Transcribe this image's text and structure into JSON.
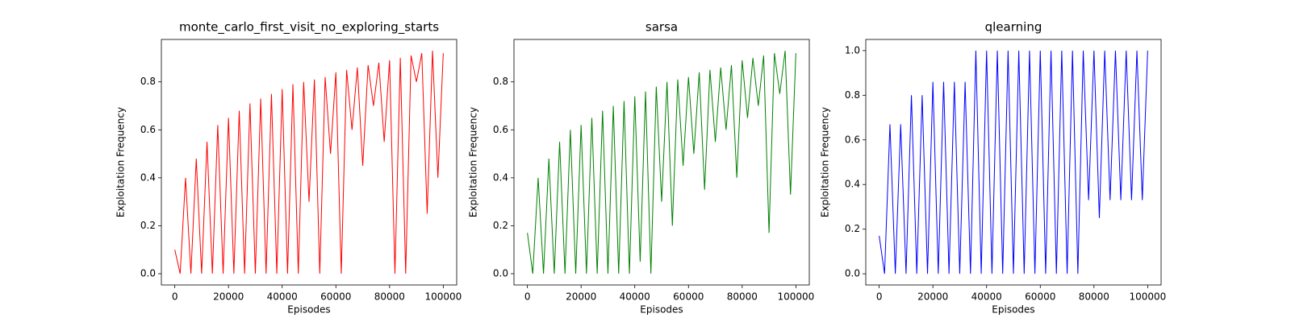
{
  "chart_data": [
    {
      "type": "line",
      "title": "monte_carlo_first_visit_no_exploring_starts",
      "x_label": "Episodes",
      "y_label": "Exploitation Frequency",
      "color": "#ff0000",
      "x": [
        0,
        2000,
        4000,
        6000,
        8000,
        10000,
        12000,
        14000,
        16000,
        18000,
        20000,
        22000,
        24000,
        26000,
        28000,
        30000,
        32000,
        34000,
        36000,
        38000,
        40000,
        42000,
        44000,
        46000,
        48000,
        50000,
        52000,
        54000,
        56000,
        58000,
        60000,
        62000,
        64000,
        66000,
        68000,
        70000,
        72000,
        74000,
        76000,
        78000,
        80000,
        82000,
        84000,
        86000,
        88000,
        90000,
        92000,
        94000,
        96000,
        98000,
        100000
      ],
      "values": [
        0.1,
        0,
        0.4,
        0,
        0.48,
        0,
        0.55,
        0,
        0.62,
        0,
        0.65,
        0,
        0.68,
        0,
        0.71,
        0,
        0.73,
        0,
        0.75,
        0,
        0.77,
        0,
        0.79,
        0,
        0.8,
        0.3,
        0.81,
        0,
        0.82,
        0.5,
        0.84,
        0,
        0.85,
        0.6,
        0.86,
        0.45,
        0.87,
        0.7,
        0.88,
        0.55,
        0.89,
        0,
        0.9,
        0,
        0.91,
        0.8,
        0.92,
        0.25,
        0.93,
        0.4,
        0.92
      ],
      "xlim": [
        -5000,
        105000
      ],
      "xticks": [
        0,
        20000,
        40000,
        60000,
        80000,
        100000
      ],
      "ylim": [
        -0.047,
        0.977
      ],
      "yticks": [
        {
          "value": 0,
          "label": "0.0"
        },
        0.2,
        0.4,
        0.6,
        0.8
      ]
    },
    {
      "type": "line",
      "title": "sarsa",
      "x_label": "Episodes",
      "y_label": "Exploitation Frequency",
      "color": "#008000",
      "x": [
        0,
        2000,
        4000,
        6000,
        8000,
        10000,
        12000,
        14000,
        16000,
        18000,
        20000,
        22000,
        24000,
        26000,
        28000,
        30000,
        32000,
        34000,
        36000,
        38000,
        40000,
        42000,
        44000,
        46000,
        48000,
        50000,
        52000,
        54000,
        56000,
        58000,
        60000,
        62000,
        64000,
        66000,
        68000,
        70000,
        72000,
        74000,
        76000,
        78000,
        80000,
        82000,
        84000,
        86000,
        88000,
        90000,
        92000,
        94000,
        96000,
        98000,
        100000
      ],
      "values": [
        0.17,
        0,
        0.4,
        0,
        0.48,
        0,
        0.55,
        0,
        0.6,
        0,
        0.62,
        0,
        0.65,
        0,
        0.68,
        0,
        0.7,
        0,
        0.72,
        0,
        0.74,
        0.05,
        0.76,
        0,
        0.78,
        0.3,
        0.8,
        0.2,
        0.81,
        0.45,
        0.82,
        0.5,
        0.84,
        0.35,
        0.85,
        0.55,
        0.86,
        0.6,
        0.87,
        0.4,
        0.89,
        0.65,
        0.9,
        0.7,
        0.91,
        0.17,
        0.92,
        0.75,
        0.93,
        0.33,
        0.92
      ],
      "xlim": [
        -5000,
        105000
      ],
      "xticks": [
        0,
        20000,
        40000,
        60000,
        80000,
        100000
      ],
      "ylim": [
        -0.047,
        0.977
      ],
      "yticks": [
        {
          "value": 0,
          "label": "0.0"
        },
        0.2,
        0.4,
        0.6,
        0.8
      ]
    },
    {
      "type": "line",
      "title": "qlearning",
      "x_label": "Episodes",
      "y_label": "Exploitation Frequency",
      "color": "#0000ff",
      "x": [
        0,
        2000,
        4000,
        6000,
        8000,
        10000,
        12000,
        14000,
        16000,
        18000,
        20000,
        22000,
        24000,
        26000,
        28000,
        30000,
        32000,
        34000,
        36000,
        38000,
        40000,
        42000,
        44000,
        46000,
        48000,
        50000,
        52000,
        54000,
        56000,
        58000,
        60000,
        62000,
        64000,
        66000,
        68000,
        70000,
        72000,
        74000,
        76000,
        78000,
        80000,
        82000,
        84000,
        86000,
        88000,
        90000,
        92000,
        94000,
        96000,
        98000,
        100000
      ],
      "values": [
        0.17,
        0,
        0.67,
        0,
        0.67,
        0,
        0.8,
        0,
        0.8,
        0,
        0.86,
        0,
        0.86,
        0,
        0.86,
        0,
        0.86,
        0,
        1.0,
        0,
        1.0,
        0,
        1.0,
        0,
        1.0,
        0,
        1.0,
        0,
        1.0,
        0,
        1.0,
        0,
        1.0,
        0,
        1.0,
        0,
        1.0,
        0,
        1.0,
        0.33,
        1.0,
        0.25,
        1.0,
        0.33,
        1.0,
        0.33,
        1.0,
        0.33,
        1.0,
        0.33,
        1.0
      ],
      "xlim": [
        -5000,
        105000
      ],
      "xticks": [
        0,
        20000,
        40000,
        60000,
        80000,
        100000
      ],
      "ylim": [
        -0.05,
        1.05
      ],
      "yticks": [
        {
          "value": 0,
          "label": "0.0"
        },
        0.2,
        0.4,
        0.6,
        0.8,
        {
          "value": 1,
          "label": "1.0"
        }
      ]
    }
  ]
}
